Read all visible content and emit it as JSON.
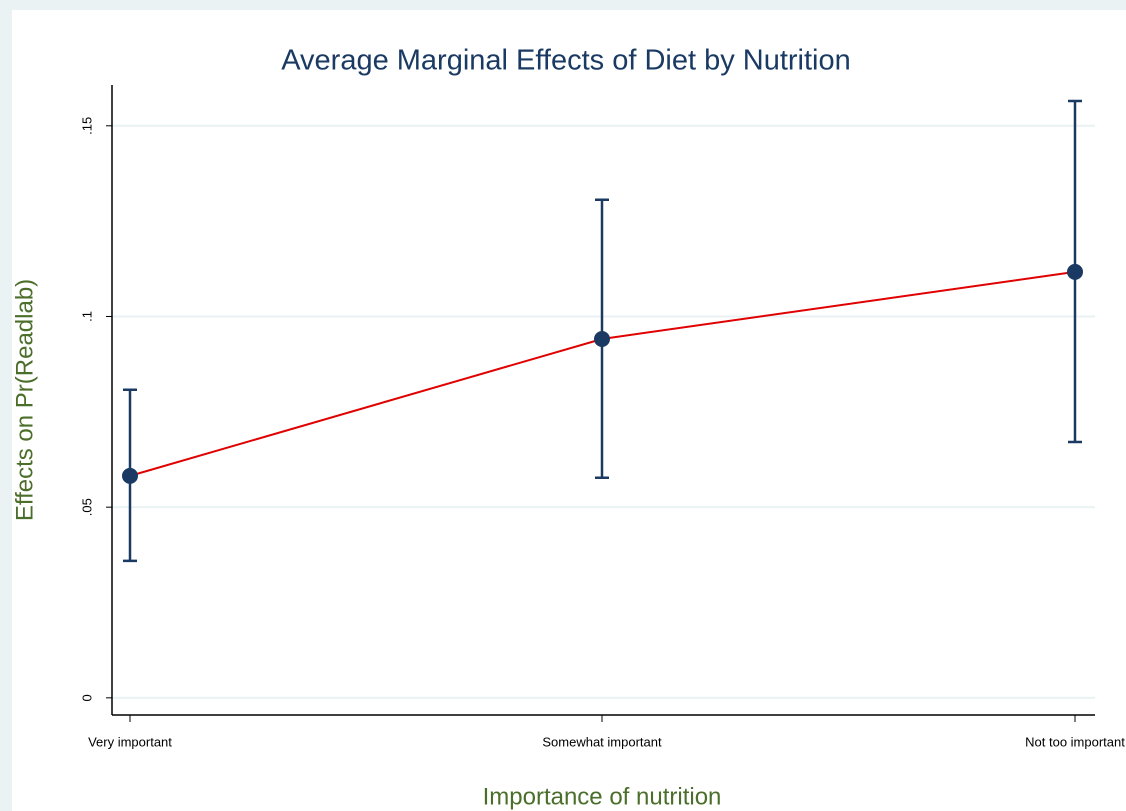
{
  "chart_data": {
    "type": "line",
    "title": "Average Marginal Effects of Diet by Nutrition",
    "x_label": "Importance of nutrition",
    "y_label": "Effects on Pr(Readlab)",
    "categories": [
      "Very important",
      "Somewhat important",
      "Not too important"
    ],
    "series": [
      {
        "color": "#e00000",
        "marker_color": "#1a3a63",
        "values": [
          0.0582,
          0.0941,
          0.1117
        ],
        "lower": [
          0.0359,
          0.0577,
          0.0671
        ],
        "upper": [
          0.0808,
          0.1306,
          0.1565
        ]
      }
    ],
    "ylim": [
      -0.0045,
      0.1607
    ],
    "yticks": [
      0,
      {
        "value": 0.05,
        "label": ".05"
      },
      {
        "value": 0.1,
        "label": ".1"
      },
      {
        "value": 0.15,
        "label": ".15"
      }
    ],
    "grid": true
  }
}
